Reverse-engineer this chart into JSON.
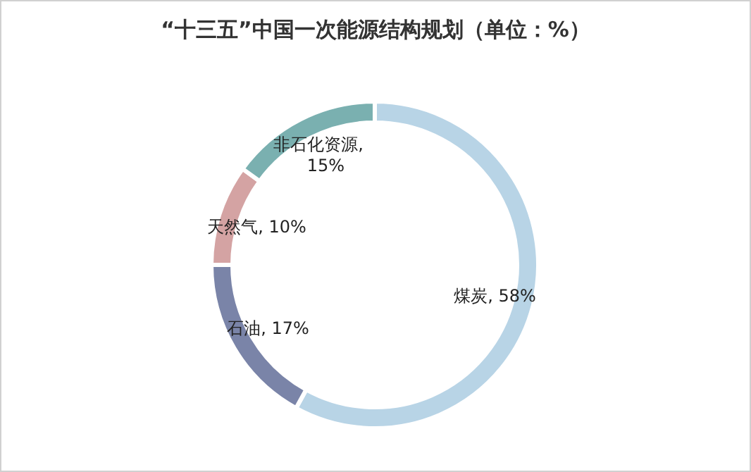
{
  "chart_data": {
    "type": "donut",
    "title": "“十三五”中国一次能源结构规划（单位：%）",
    "categories": [
      "煤炭",
      "石油",
      "天然气",
      "非石化资源"
    ],
    "values": [
      58,
      17,
      10,
      15
    ],
    "colors": [
      "#b8d4e6",
      "#7a84a8",
      "#d4a3a3",
      "#7ab0b0"
    ],
    "value_labels": [
      ", 58%",
      ", 17%",
      ", 10%",
      ", 15%"
    ]
  }
}
